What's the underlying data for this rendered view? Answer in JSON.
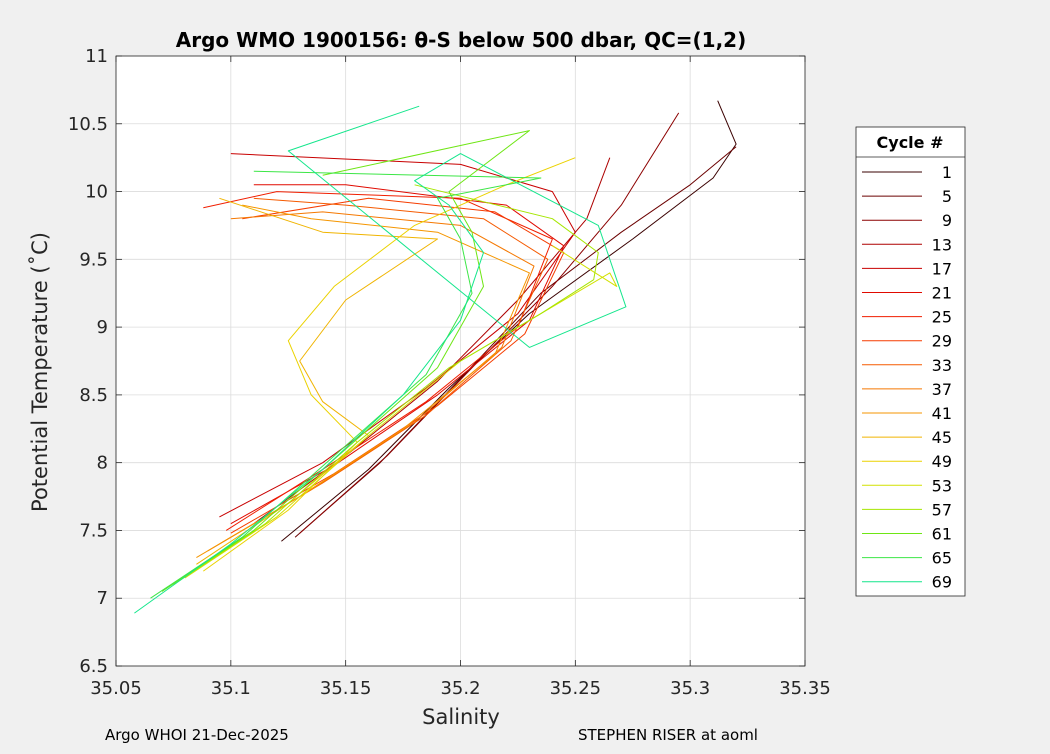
{
  "chart_data": {
    "type": "line",
    "title": "Argo WMO 1900156: θ-S below 500 dbar,  QC=(1,2)",
    "xlabel": "Salinity",
    "ylabel": "Potential Temperature (˚C)",
    "xlim": [
      35.05,
      35.35
    ],
    "ylim": [
      6.5,
      11
    ],
    "x_ticks": [
      35.05,
      35.1,
      35.15,
      35.2,
      35.25,
      35.3,
      35.35
    ],
    "x_tick_labels": [
      "35.05",
      "35.1",
      "35.15",
      "35.2",
      "35.25",
      "35.3",
      "35.35"
    ],
    "y_ticks": [
      6.5,
      7,
      7.5,
      8,
      8.5,
      9,
      9.5,
      10,
      10.5,
      11
    ],
    "y_tick_labels": [
      "6.5",
      "7",
      "7.5",
      "8",
      "8.5",
      "9",
      "9.5",
      "10",
      "10.5",
      "11"
    ],
    "grid": true,
    "legend_title": "Cycle #",
    "legend_position": "outside-right",
    "series": [
      {
        "name": "1",
        "color": "#3a0000",
        "x": [
          35.122,
          35.16,
          35.195,
          35.23,
          35.275,
          35.31,
          35.32,
          35.312
        ],
        "y": [
          7.42,
          7.95,
          8.55,
          9.1,
          9.65,
          10.1,
          10.35,
          10.67
        ]
      },
      {
        "name": "5",
        "color": "#6b0000",
        "x": [
          35.128,
          35.165,
          35.2,
          35.235,
          35.27,
          35.3,
          35.32
        ],
        "y": [
          7.45,
          8.0,
          8.62,
          9.25,
          9.7,
          10.05,
          10.33
        ]
      },
      {
        "name": "9",
        "color": "#8c0000",
        "x": [
          35.13,
          35.168,
          35.205,
          35.24,
          35.27,
          35.295
        ],
        "y": [
          7.48,
          8.05,
          8.7,
          9.3,
          9.9,
          10.58
        ]
      },
      {
        "name": "13",
        "color": "#ad0000",
        "x": [
          35.11,
          35.15,
          35.19,
          35.225,
          35.255,
          35.265
        ],
        "y": [
          7.55,
          8.05,
          8.6,
          9.2,
          9.8,
          10.25
        ]
      },
      {
        "name": "17",
        "color": "#c80000",
        "x": [
          35.095,
          35.14,
          35.185,
          35.225,
          35.25,
          35.24,
          35.2,
          35.1
        ],
        "y": [
          7.6,
          8.0,
          8.55,
          9.1,
          9.7,
          10.0,
          10.2,
          10.28
        ]
      },
      {
        "name": "21",
        "color": "#e00a00",
        "x": [
          35.1,
          35.145,
          35.19,
          35.23,
          35.245,
          35.22,
          35.15,
          35.11
        ],
        "y": [
          7.55,
          7.98,
          8.5,
          9.05,
          9.6,
          9.9,
          10.05,
          10.05
        ]
      },
      {
        "name": "25",
        "color": "#f01e00",
        "x": [
          35.098,
          35.14,
          35.185,
          35.225,
          35.24,
          35.2,
          35.12,
          35.088
        ],
        "y": [
          7.5,
          7.95,
          8.45,
          9.0,
          9.65,
          9.95,
          10.0,
          9.88
        ]
      },
      {
        "name": "29",
        "color": "#f53c00",
        "x": [
          35.1,
          35.145,
          35.19,
          35.228,
          35.245,
          35.215,
          35.16,
          35.105
        ],
        "y": [
          7.48,
          7.92,
          8.42,
          8.95,
          9.55,
          9.85,
          9.95,
          9.8
        ]
      },
      {
        "name": "33",
        "color": "#f55a00",
        "x": [
          35.095,
          35.14,
          35.185,
          35.222,
          35.238,
          35.21,
          35.15,
          35.11
        ],
        "y": [
          7.4,
          7.85,
          8.35,
          8.9,
          9.5,
          9.8,
          9.9,
          9.95
        ]
      },
      {
        "name": "37",
        "color": "#f57800",
        "x": [
          35.09,
          35.135,
          35.18,
          35.218,
          35.232,
          35.2,
          35.14,
          35.1
        ],
        "y": [
          7.35,
          7.8,
          8.3,
          8.85,
          9.45,
          9.75,
          9.85,
          9.8
        ]
      },
      {
        "name": "41",
        "color": "#f59600",
        "x": [
          35.085,
          35.13,
          35.175,
          35.215,
          35.23,
          35.19,
          35.135,
          35.105
        ],
        "y": [
          7.3,
          7.75,
          8.25,
          8.8,
          9.4,
          9.7,
          9.8,
          9.9
        ]
      },
      {
        "name": "45",
        "color": "#f0b400",
        "x": [
          35.085,
          35.125,
          35.16,
          35.14,
          35.13,
          35.15,
          35.19,
          35.14,
          35.095
        ],
        "y": [
          7.25,
          7.7,
          8.2,
          8.45,
          8.75,
          9.2,
          9.65,
          9.7,
          9.95
        ]
      },
      {
        "name": "49",
        "color": "#ebd200",
        "x": [
          35.088,
          35.125,
          35.155,
          35.135,
          35.125,
          35.145,
          35.18,
          35.22,
          35.25
        ],
        "y": [
          7.2,
          7.65,
          8.15,
          8.5,
          8.9,
          9.3,
          9.75,
          10.05,
          10.25
        ]
      },
      {
        "name": "53",
        "color": "#d2e100",
        "x": [
          35.08,
          35.12,
          35.16,
          35.2,
          35.24,
          35.265,
          35.268,
          35.24
        ],
        "y": [
          7.15,
          7.6,
          8.2,
          8.75,
          9.15,
          9.4,
          9.3,
          9.6
        ]
      },
      {
        "name": "57",
        "color": "#a5e600",
        "x": [
          35.075,
          35.115,
          35.155,
          35.195,
          35.235,
          35.258,
          35.26,
          35.24,
          35.18
        ],
        "y": [
          7.1,
          7.55,
          8.15,
          8.7,
          9.1,
          9.35,
          9.55,
          9.8,
          10.05
        ]
      },
      {
        "name": "61",
        "color": "#6ee614",
        "x": [
          35.07,
          35.11,
          35.15,
          35.19,
          35.21,
          35.205,
          35.195,
          35.23,
          35.14
        ],
        "y": [
          7.05,
          7.5,
          8.1,
          8.7,
          9.3,
          9.7,
          10.0,
          10.45,
          10.12
        ]
      },
      {
        "name": "65",
        "color": "#3ce646",
        "x": [
          35.065,
          35.105,
          35.145,
          35.185,
          35.205,
          35.2,
          35.19,
          35.235,
          35.11
        ],
        "y": [
          7.0,
          7.45,
          8.05,
          8.65,
          9.25,
          9.65,
          9.95,
          10.1,
          10.15
        ]
      },
      {
        "name": "69",
        "color": "#14e68c",
        "x": [
          35.058,
          35.1,
          35.14,
          35.175,
          35.2,
          35.21,
          35.195,
          35.18,
          35.2,
          35.26,
          35.272,
          35.23,
          35.125,
          35.182
        ],
        "y": [
          6.89,
          7.4,
          7.95,
          8.5,
          9.05,
          9.55,
          9.9,
          10.08,
          10.28,
          9.75,
          9.15,
          8.85,
          10.3,
          10.63
        ]
      }
    ]
  },
  "footer": {
    "left": "Argo WHOI 21-Dec-2025",
    "right": "STEPHEN RISER at aoml"
  }
}
